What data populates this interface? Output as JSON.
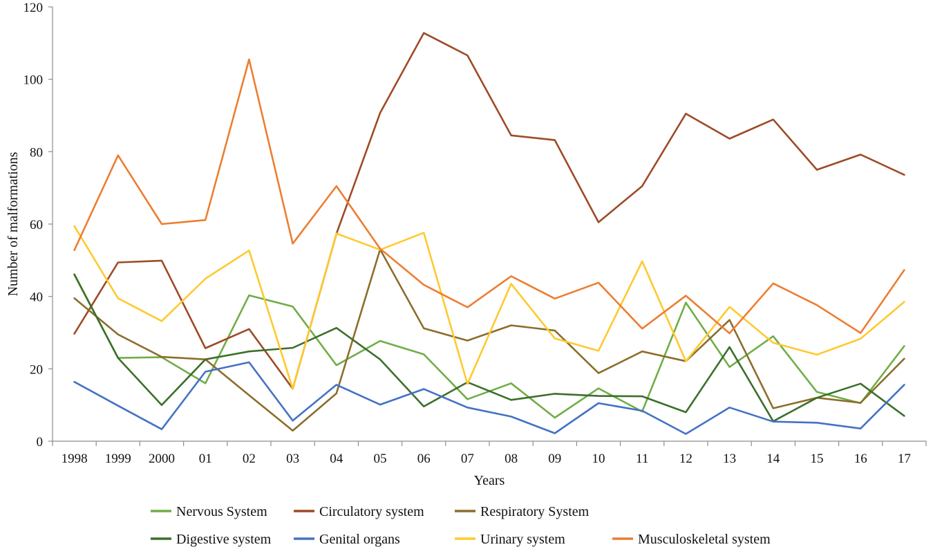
{
  "chart_data": {
    "type": "line",
    "title": "",
    "xlabel": "Years",
    "ylabel": "Number of malformations",
    "ylim": [
      0,
      120
    ],
    "yticks": [
      0,
      20,
      40,
      60,
      80,
      100,
      120
    ],
    "grid": false,
    "legend_position": "bottom",
    "categories": [
      "1998",
      "1999",
      "2000",
      "01",
      "02",
      "03",
      "04",
      "05",
      "06",
      "07",
      "08",
      "09",
      "10",
      "11",
      "12",
      "13",
      "14",
      "15",
      "16",
      "17"
    ],
    "series": [
      {
        "name": "Nervous System",
        "color": "#70ad47",
        "values": [
          46,
          23,
          23.2,
          16,
          40.3,
          37.2,
          21,
          27.7,
          24,
          11.6,
          16,
          6.5,
          14.6,
          8.2,
          38.3,
          20.5,
          29,
          13.6,
          10.5,
          26.3
        ]
      },
      {
        "name": "Circulatory system",
        "color": "#9e4a26",
        "values": [
          29.7,
          49.4,
          49.9,
          25.7,
          31,
          14.5,
          57.3,
          90.7,
          112.8,
          106.6,
          84.5,
          83.2,
          60.5,
          70.5,
          90.5,
          83.6,
          88.9,
          75,
          79.2,
          73.6
        ]
      },
      {
        "name": "Respiratory System",
        "color": "#8c6d2a",
        "values": [
          39.5,
          29.5,
          23.3,
          22.6,
          12.7,
          2.9,
          13.2,
          53,
          31.2,
          27.8,
          32,
          30.6,
          18.8,
          24.8,
          22.1,
          33.5,
          9.1,
          12,
          10.6,
          22.8
        ]
      },
      {
        "name": "Digestive system",
        "color": "#3c6f2a",
        "values": [
          46.1,
          23,
          10,
          22.6,
          24.8,
          25.8,
          31.3,
          22.6,
          9.6,
          16.3,
          11.4,
          13.1,
          12.5,
          12.4,
          8,
          26,
          5.5,
          12,
          15.9,
          7
        ]
      },
      {
        "name": "Genital organs",
        "color": "#4472c4",
        "values": [
          16.4,
          9.8,
          3.3,
          19.2,
          21.8,
          5.7,
          15.6,
          10.1,
          14.4,
          9.3,
          6.8,
          2.2,
          10.5,
          8.4,
          2,
          9.3,
          5.4,
          5.1,
          3.5,
          15.6
        ]
      },
      {
        "name": "Urinary system",
        "color": "#ffc92e",
        "values": [
          59.4,
          39.5,
          33.2,
          44.9,
          52.7,
          14.5,
          57.4,
          52.9,
          57.6,
          15.8,
          43.5,
          28.4,
          25,
          49.7,
          22.1,
          37.1,
          27.2,
          23.9,
          28.3,
          38.5
        ]
      },
      {
        "name": "Musculoskeletal system",
        "color": "#ed7d31",
        "values": [
          52.8,
          79,
          60,
          61.1,
          105.5,
          54.6,
          70.5,
          53.2,
          43.2,
          37,
          45.6,
          39.4,
          43.8,
          31.1,
          40.2,
          29.8,
          43.6,
          37.6,
          29.9,
          47.3
        ]
      }
    ],
    "legend_rows": [
      [
        "Nervous System",
        "Circulatory system",
        "Respiratory System"
      ],
      [
        "Digestive system",
        "Genital organs",
        "Urinary system",
        "Musculoskeletal system"
      ]
    ]
  }
}
